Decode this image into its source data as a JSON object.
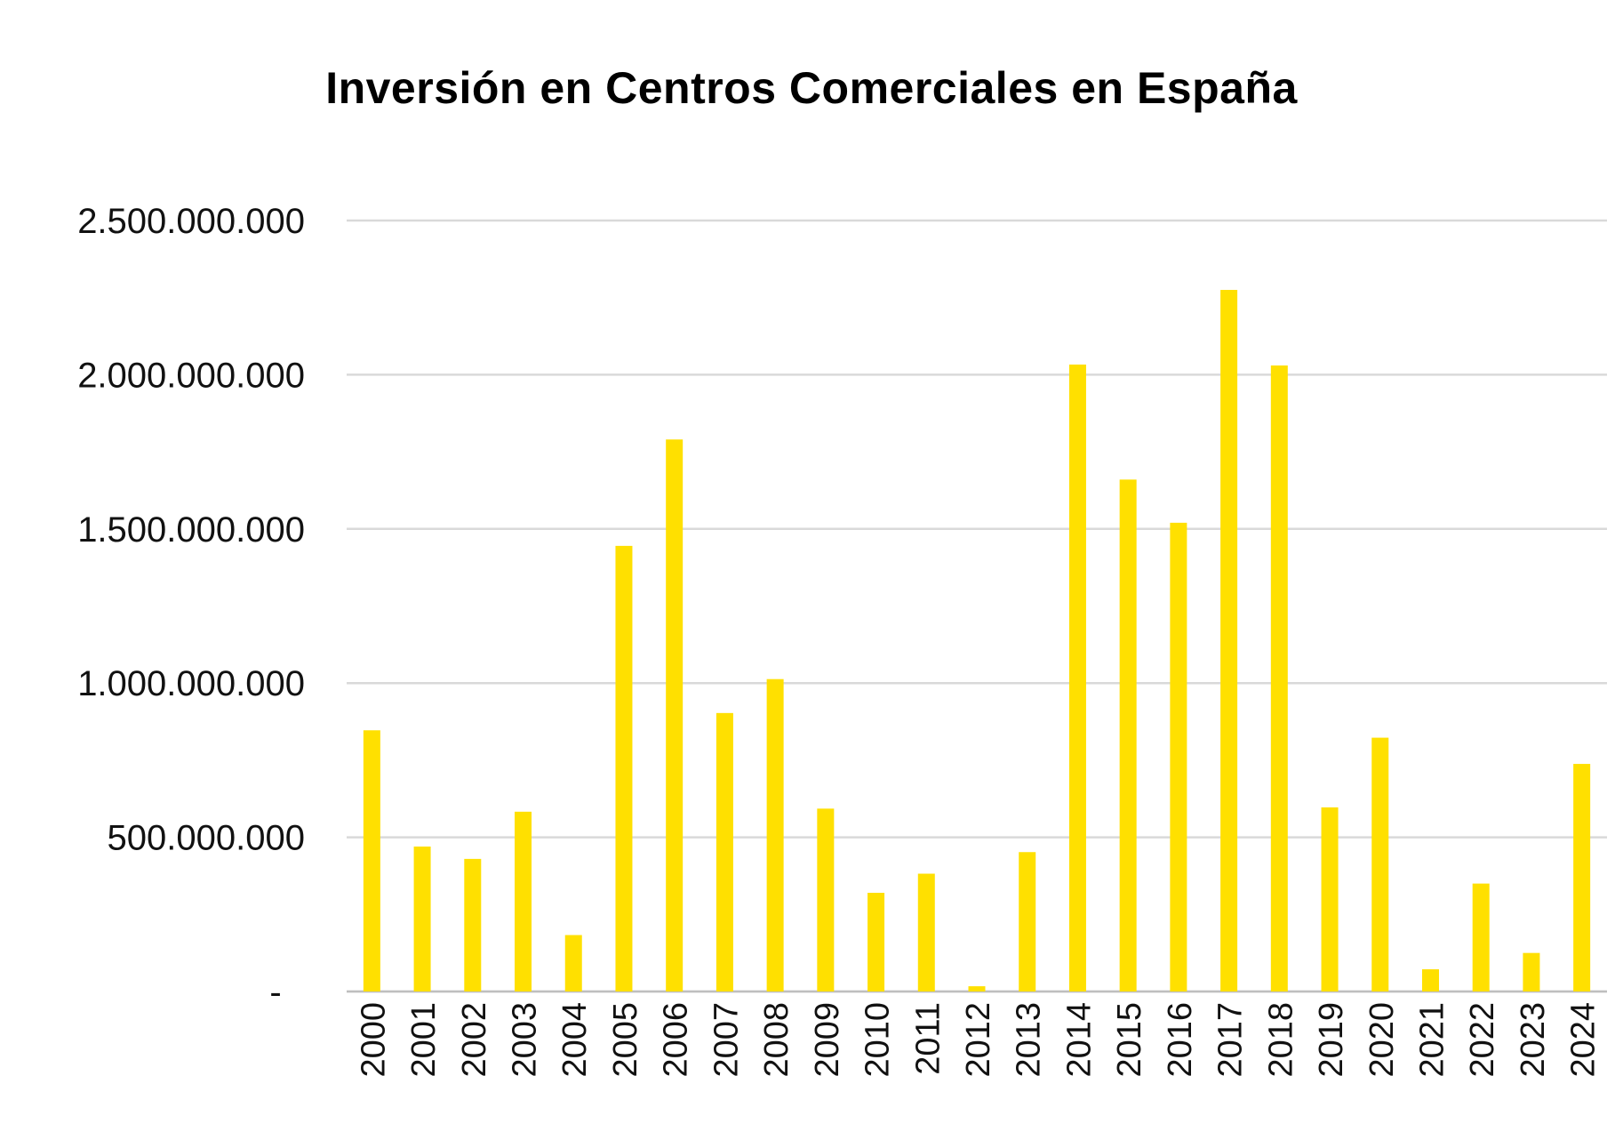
{
  "chart_data": {
    "type": "bar",
    "title": "Inversión en Centros Comerciales en España",
    "xlabel": "",
    "ylabel": "",
    "ylim": [
      0,
      2500000000
    ],
    "grid": true,
    "legend": "none",
    "bar_color": "#FFE000",
    "grid_color": "#D9D9D9",
    "y_ticks": [
      {
        "value": 0,
        "label": "-"
      },
      {
        "value": 500000000,
        "label": "500.000.000"
      },
      {
        "value": 1000000000,
        "label": "1.000.000.000"
      },
      {
        "value": 1500000000,
        "label": "1.500.000.000"
      },
      {
        "value": 2000000000,
        "label": "2.000.000.000"
      },
      {
        "value": 2500000000,
        "label": "2.500.000.000"
      }
    ],
    "categories": [
      "2000",
      "2001",
      "2002",
      "2003",
      "2004",
      "2005",
      "2006",
      "2007",
      "2008",
      "2009",
      "2010",
      "2011",
      "2012",
      "2013",
      "2014",
      "2015",
      "2016",
      "2017",
      "2018",
      "2019",
      "2020",
      "2021",
      "2022",
      "2023",
      "2024"
    ],
    "values": [
      847000000,
      470000000,
      430000000,
      583000000,
      183000000,
      1445000000,
      1790000000,
      903000000,
      1013000000,
      593000000,
      320000000,
      382000000,
      17000000,
      452000000,
      2033000000,
      1660000000,
      1520000000,
      2275000000,
      2030000000,
      597000000,
      823000000,
      72000000,
      350000000,
      125000000,
      738000000
    ]
  }
}
